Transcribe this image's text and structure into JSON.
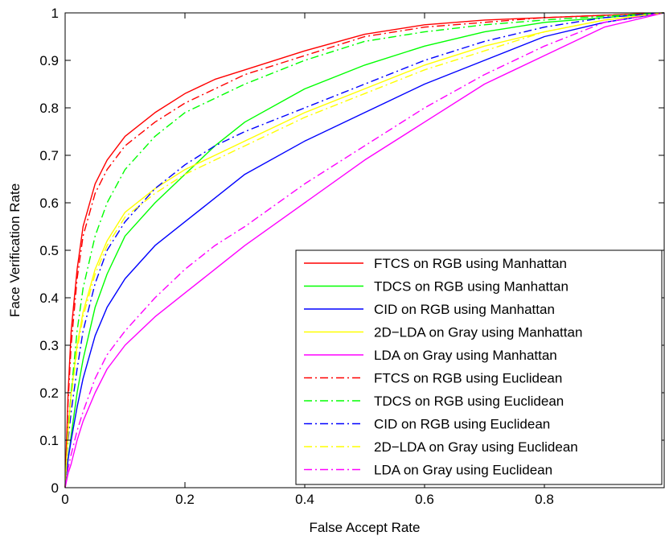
{
  "chart_data": {
    "type": "line",
    "title": "",
    "xlabel": "False Accept Rate",
    "ylabel": "Face Verification Rate",
    "xlim": [
      0,
      1
    ],
    "ylim": [
      0,
      1
    ],
    "x_ticks": [
      0,
      0.2,
      0.4,
      0.6,
      0.8
    ],
    "x_tick_labels": [
      "0",
      "0.2",
      "0.4",
      "0.6",
      "0.8"
    ],
    "y_ticks": [
      0,
      0.1,
      0.2,
      0.3,
      0.4,
      0.5,
      0.6,
      0.7,
      0.8,
      0.9,
      1
    ],
    "y_tick_labels": [
      "0",
      "0.1",
      "0.2",
      "0.3",
      "0.4",
      "0.5",
      "0.6",
      "0.7",
      "0.8",
      "0.9",
      "1"
    ],
    "grid": false,
    "legend_position": "bottom-right",
    "series": [
      {
        "name": "FTCS on RGB using Manhattan",
        "color": "#ff0000",
        "style": "solid",
        "x": [
          0,
          0.005,
          0.01,
          0.02,
          0.03,
          0.05,
          0.07,
          0.1,
          0.15,
          0.2,
          0.25,
          0.3,
          0.4,
          0.5,
          0.6,
          0.7,
          0.8,
          0.9,
          1.0
        ],
        "y": [
          0,
          0.2,
          0.33,
          0.46,
          0.55,
          0.64,
          0.69,
          0.74,
          0.79,
          0.83,
          0.86,
          0.88,
          0.92,
          0.955,
          0.975,
          0.985,
          0.99,
          0.995,
          1.0
        ]
      },
      {
        "name": "TDCS on RGB using Manhattan",
        "color": "#00ff00",
        "style": "solid",
        "x": [
          0,
          0.005,
          0.01,
          0.02,
          0.03,
          0.05,
          0.07,
          0.1,
          0.15,
          0.2,
          0.25,
          0.3,
          0.4,
          0.5,
          0.6,
          0.7,
          0.8,
          0.9,
          1.0
        ],
        "y": [
          0,
          0.06,
          0.11,
          0.2,
          0.27,
          0.38,
          0.45,
          0.53,
          0.6,
          0.66,
          0.72,
          0.77,
          0.84,
          0.89,
          0.93,
          0.96,
          0.98,
          0.99,
          1.0
        ]
      },
      {
        "name": "CID on RGB using Manhattan",
        "color": "#0000ff",
        "style": "solid",
        "x": [
          0,
          0.005,
          0.01,
          0.02,
          0.03,
          0.05,
          0.07,
          0.1,
          0.15,
          0.2,
          0.25,
          0.3,
          0.4,
          0.5,
          0.6,
          0.7,
          0.8,
          0.9,
          1.0
        ],
        "y": [
          0,
          0.06,
          0.1,
          0.17,
          0.23,
          0.32,
          0.38,
          0.44,
          0.51,
          0.56,
          0.61,
          0.66,
          0.73,
          0.79,
          0.85,
          0.9,
          0.95,
          0.98,
          1.0
        ]
      },
      {
        "name": "2D−LDA on Gray using Manhattan",
        "color": "#ffff00",
        "style": "solid",
        "x": [
          0,
          0.005,
          0.01,
          0.02,
          0.03,
          0.05,
          0.07,
          0.1,
          0.15,
          0.2,
          0.25,
          0.3,
          0.4,
          0.5,
          0.6,
          0.7,
          0.8,
          0.9,
          1.0
        ],
        "y": [
          0,
          0.12,
          0.2,
          0.3,
          0.37,
          0.46,
          0.52,
          0.58,
          0.63,
          0.67,
          0.7,
          0.73,
          0.79,
          0.84,
          0.89,
          0.93,
          0.96,
          0.985,
          1.0
        ]
      },
      {
        "name": "LDA on Gray using Manhattan",
        "color": "#ff00ff",
        "style": "solid",
        "x": [
          0,
          0.005,
          0.01,
          0.02,
          0.03,
          0.05,
          0.07,
          0.1,
          0.15,
          0.2,
          0.25,
          0.3,
          0.4,
          0.5,
          0.6,
          0.7,
          0.8,
          0.9,
          1.0
        ],
        "y": [
          0,
          0.03,
          0.05,
          0.1,
          0.14,
          0.2,
          0.25,
          0.3,
          0.36,
          0.41,
          0.46,
          0.51,
          0.6,
          0.69,
          0.77,
          0.85,
          0.91,
          0.97,
          1.0
        ]
      },
      {
        "name": "FTCS on RGB using Euclidean",
        "color": "#ff0000",
        "style": "dashdot",
        "x": [
          0,
          0.005,
          0.01,
          0.02,
          0.03,
          0.05,
          0.07,
          0.1,
          0.15,
          0.2,
          0.25,
          0.3,
          0.4,
          0.5,
          0.6,
          0.7,
          0.8,
          0.9,
          1.0
        ],
        "y": [
          0,
          0.18,
          0.3,
          0.44,
          0.53,
          0.62,
          0.67,
          0.72,
          0.77,
          0.81,
          0.84,
          0.87,
          0.91,
          0.95,
          0.97,
          0.98,
          0.99,
          0.995,
          1.0
        ]
      },
      {
        "name": "TDCS on RGB using Euclidean",
        "color": "#00ff00",
        "style": "dashdot",
        "x": [
          0,
          0.005,
          0.01,
          0.02,
          0.03,
          0.05,
          0.07,
          0.1,
          0.15,
          0.2,
          0.25,
          0.3,
          0.4,
          0.5,
          0.6,
          0.7,
          0.8,
          0.9,
          1.0
        ],
        "y": [
          0,
          0.12,
          0.2,
          0.33,
          0.42,
          0.53,
          0.6,
          0.67,
          0.74,
          0.79,
          0.82,
          0.85,
          0.9,
          0.94,
          0.96,
          0.975,
          0.985,
          0.993,
          1.0
        ]
      },
      {
        "name": "CID on RGB using Euclidean",
        "color": "#0000ff",
        "style": "dashdot",
        "x": [
          0,
          0.005,
          0.01,
          0.02,
          0.03,
          0.05,
          0.07,
          0.1,
          0.15,
          0.2,
          0.25,
          0.3,
          0.4,
          0.5,
          0.6,
          0.7,
          0.8,
          0.9,
          1.0
        ],
        "y": [
          0,
          0.1,
          0.16,
          0.25,
          0.33,
          0.43,
          0.5,
          0.56,
          0.63,
          0.68,
          0.72,
          0.75,
          0.8,
          0.85,
          0.9,
          0.94,
          0.97,
          0.99,
          1.0
        ]
      },
      {
        "name": "2D−LDA on Gray using Euclidean",
        "color": "#ffff00",
        "style": "dashdot",
        "x": [
          0,
          0.005,
          0.01,
          0.02,
          0.03,
          0.05,
          0.07,
          0.1,
          0.15,
          0.2,
          0.25,
          0.3,
          0.4,
          0.5,
          0.6,
          0.7,
          0.8,
          0.9,
          1.0
        ],
        "y": [
          0,
          0.11,
          0.19,
          0.29,
          0.36,
          0.45,
          0.51,
          0.57,
          0.62,
          0.66,
          0.69,
          0.72,
          0.78,
          0.83,
          0.88,
          0.92,
          0.96,
          0.985,
          1.0
        ]
      },
      {
        "name": "LDA on Gray using Euclidean",
        "color": "#ff00ff",
        "style": "dashdot",
        "x": [
          0,
          0.005,
          0.01,
          0.02,
          0.03,
          0.05,
          0.07,
          0.1,
          0.15,
          0.2,
          0.25,
          0.3,
          0.4,
          0.5,
          0.6,
          0.7,
          0.8,
          0.9,
          1.0
        ],
        "y": [
          0,
          0.04,
          0.07,
          0.12,
          0.16,
          0.23,
          0.28,
          0.33,
          0.4,
          0.46,
          0.51,
          0.55,
          0.64,
          0.72,
          0.8,
          0.87,
          0.93,
          0.98,
          1.0
        ]
      }
    ]
  }
}
